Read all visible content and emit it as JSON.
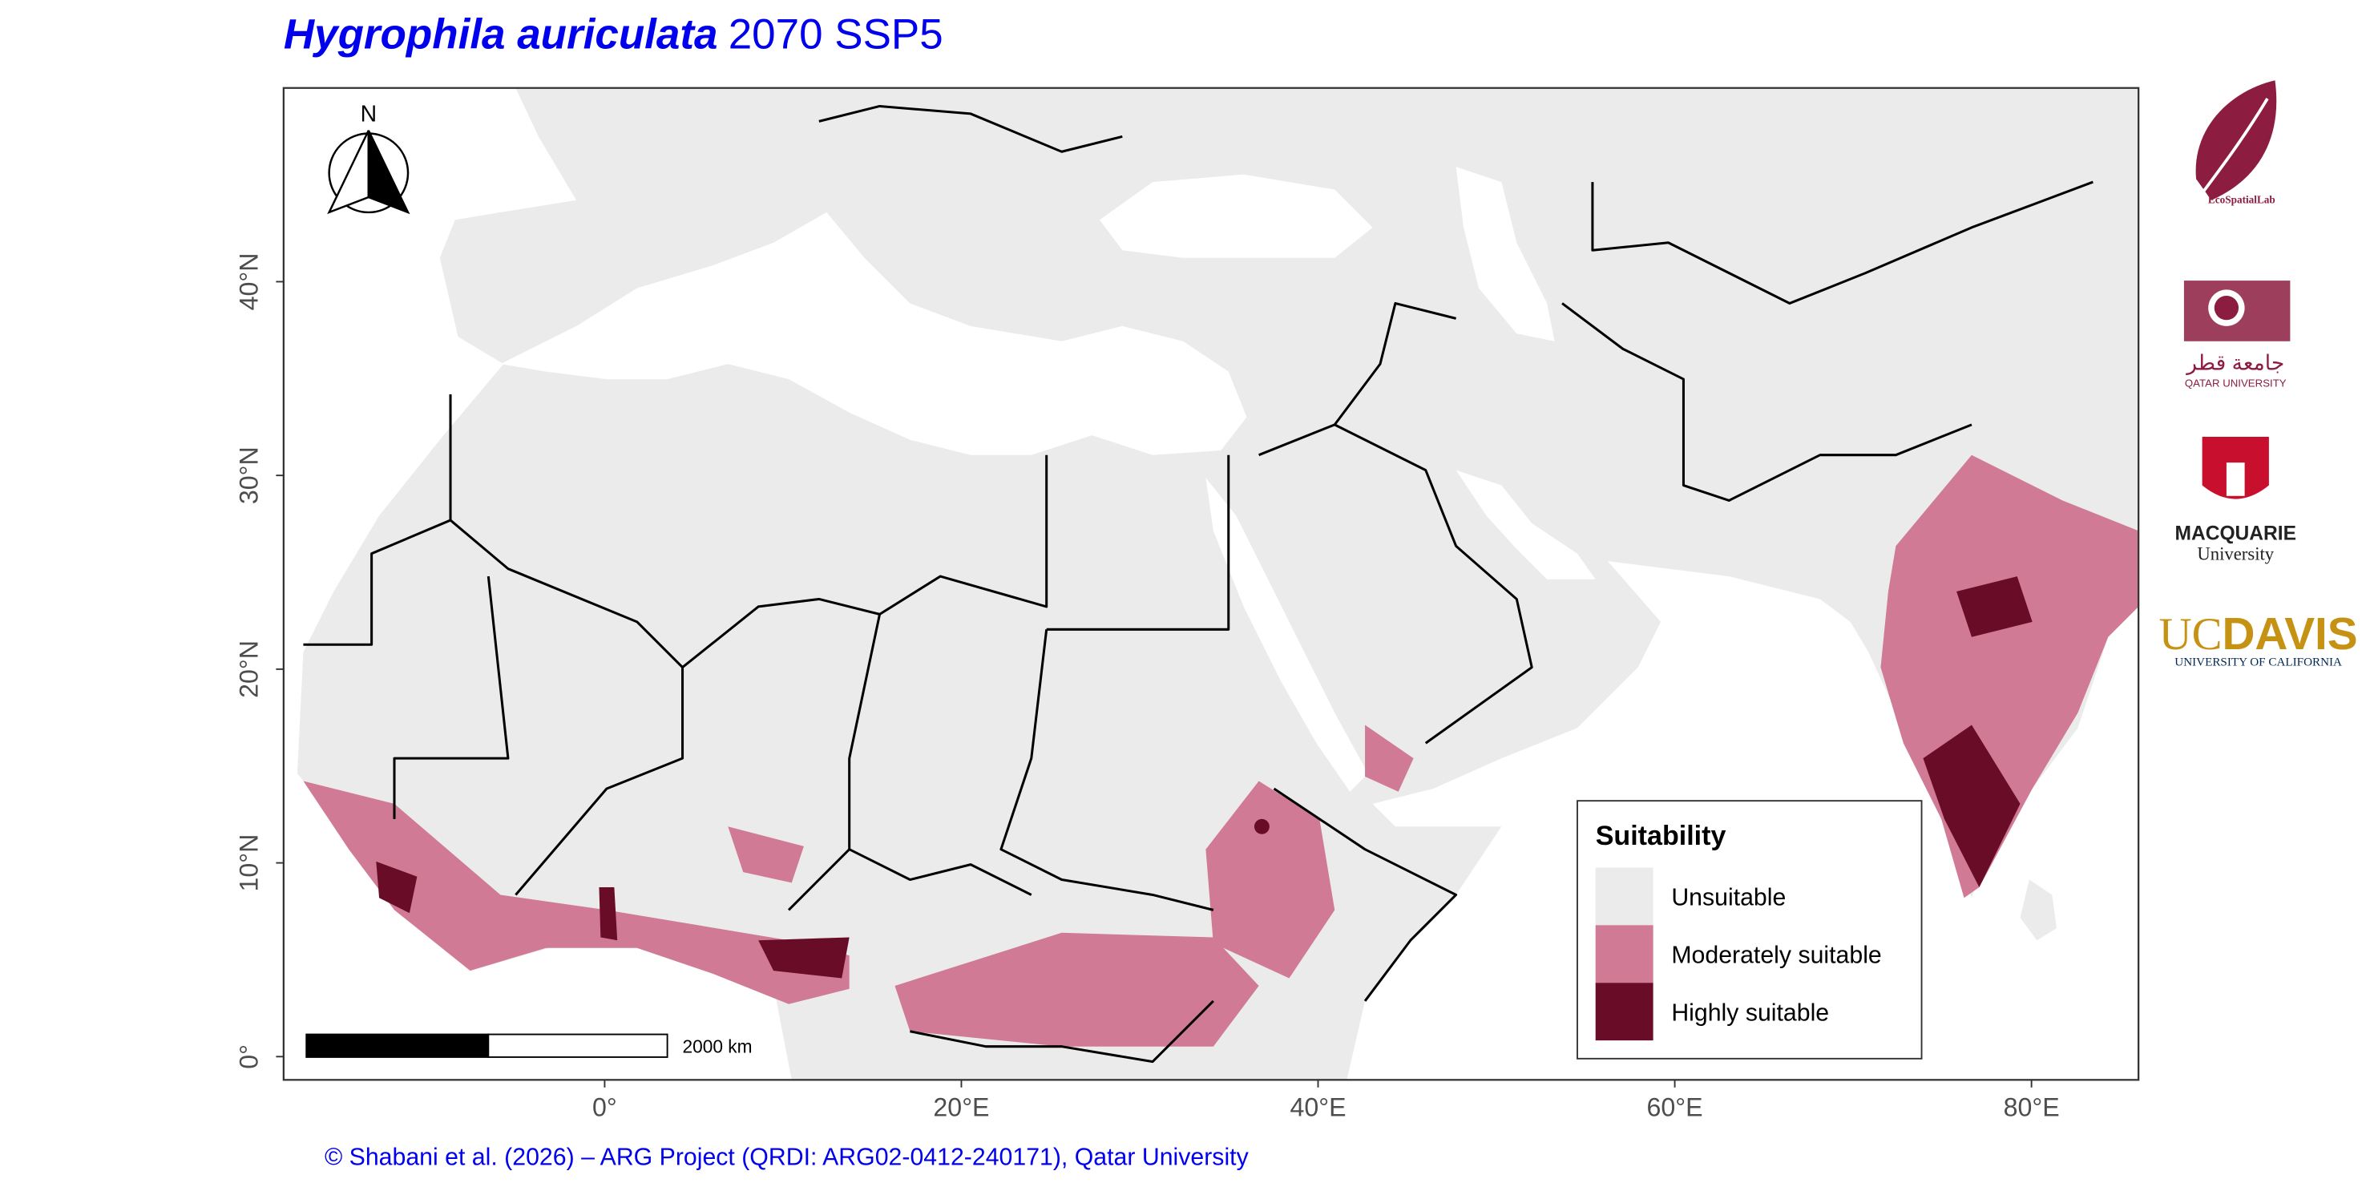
{
  "title": {
    "species": "Hygrophila auriculata",
    "scenario": "2070 SSP5"
  },
  "map": {
    "xlim": [
      -18,
      86
    ],
    "ylim": [
      -1.2,
      50
    ],
    "xticks": [
      {
        "value": 0,
        "label": "0°"
      },
      {
        "value": 20,
        "label": "20°E"
      },
      {
        "value": 40,
        "label": "40°E"
      },
      {
        "value": 60,
        "label": "60°E"
      },
      {
        "value": 80,
        "label": "80°E"
      }
    ],
    "yticks": [
      {
        "value": 0,
        "label": "0°"
      },
      {
        "value": 10,
        "label": "10°N"
      },
      {
        "value": 20,
        "label": "20°N"
      },
      {
        "value": 30,
        "label": "30°N"
      },
      {
        "value": 40,
        "label": "40°N"
      }
    ]
  },
  "north_arrow": "N",
  "scale_bar": "2000 km",
  "legend": {
    "title": "Suitability",
    "items": [
      {
        "label": "Unsuitable",
        "color": "#ebebeb"
      },
      {
        "label": "Moderately suitable",
        "color": "#d07a96"
      },
      {
        "label": "Highly suitable",
        "color": "#680c27"
      }
    ]
  },
  "logos": {
    "ecospatial": "EcoSpatialLab",
    "qatar_arabic": "جامعة قطر",
    "qatar": "QATAR UNIVERSITY",
    "macquarie": "MACQUARIE",
    "macquarie_sub": "University",
    "ucdavis_uc": "UC",
    "ucdavis_davis": "DAVIS",
    "ucdavis_sub": "UNIVERSITY OF CALIFORNIA"
  },
  "caption": "© Shabani et al. (2026) – ARG Project (QRDI: ARG02-0412-240171), Qatar University"
}
